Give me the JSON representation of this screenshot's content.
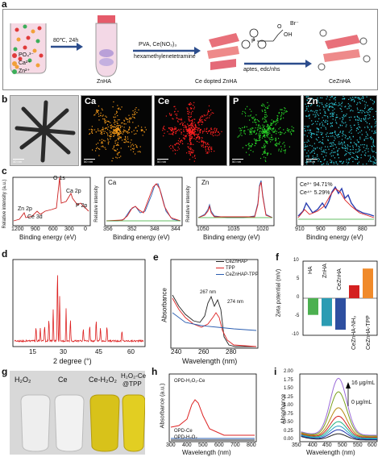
{
  "panel_a": {
    "letter": "a",
    "legend": [
      {
        "label": "PO₄³⁻",
        "color": "#e03a3a"
      },
      {
        "label": "Ca²⁺",
        "color": "#f1a03a"
      },
      {
        "label": "Zn²⁺",
        "color": "#3cae5a"
      }
    ],
    "step1_text": "80℃, 24h",
    "znha_label": "ZnHA",
    "step2_top": "PVA, Ce(NO₃)₃",
    "step2_bottom": "hexamethylenetetramine",
    "ce_label": "Ce dopted ZnHA",
    "step3_text": "aptes, edc/nhs",
    "br_label": "Br⁻",
    "oh_label": "OH",
    "o_label": "O",
    "p_label": "P",
    "final_label": "CeZnHA"
  },
  "panel_b": {
    "letter": "b",
    "maps": [
      {
        "label": "",
        "scale": "40 nm",
        "color": "#d8d8d8"
      },
      {
        "label": "Ca",
        "scale": "50 nm",
        "color": "#f59a1a"
      },
      {
        "label": "Ce",
        "scale": "50 nm",
        "color": "#ff2020"
      },
      {
        "label": "P",
        "scale": "50 nm",
        "color": "#29d629"
      },
      {
        "label": "Zn",
        "scale": "50 nm",
        "color": "#2ec8d8"
      }
    ]
  },
  "panel_c": {
    "letter": "c",
    "survey": {
      "ylabel": "Relative intensity (a.u.)",
      "xlabel": "Binding energy (eV)",
      "xticks": [
        "1200",
        "900",
        "600",
        "300",
        "0"
      ],
      "peaks": [
        "O 1s",
        "Ca 2p",
        "P 2p",
        "Zn 2p",
        "Ce 3d"
      ]
    },
    "ca": {
      "title": "Ca",
      "ylabel": "Relative intensity",
      "xticks": [
        "356",
        "352",
        "348",
        "344"
      ]
    },
    "zn": {
      "title": "Zn",
      "ylabel": "Relative intensity",
      "xticks": [
        "1050",
        "1035",
        "1020"
      ]
    },
    "ce": {
      "ce3": "Ce³⁺ 94.71%",
      "ce4": "Ce⁴⁺ 5.29%",
      "xticks": [
        "910",
        "900",
        "890",
        "880"
      ]
    }
  },
  "panel_d": {
    "letter": "d",
    "xlabel": "2 degree (°)",
    "xticks": [
      "15",
      "30",
      "45",
      "60"
    ]
  },
  "panel_e": {
    "letter": "e",
    "ylabel": "Absorbance",
    "xlabel": "Wavelength (nm)",
    "xticks": [
      "240",
      "260",
      "280"
    ],
    "legend": [
      {
        "label": "CeZnHAP",
        "color": "#222222"
      },
      {
        "label": "TPP",
        "color": "#d42020"
      },
      {
        "label": "CeZnHAP-TPP",
        "color": "#2a5db0"
      }
    ],
    "annot1": "267 nm",
    "annot2": "274 nm"
  },
  "panel_f": {
    "letter": "f",
    "ylabel": "Zeta potential (mV)",
    "yticks": [
      "10",
      "5",
      "0",
      "-5",
      "-10"
    ],
    "chart_data": {
      "type": "bar",
      "categories": [
        "HA",
        "ZnHA",
        "CeZnHA",
        "CeZnHA-NH₃",
        "CeZnHA-TPP"
      ],
      "values": [
        -4.5,
        -7.5,
        -8.5,
        3.5,
        8.0
      ],
      "colors": [
        "#4cb050",
        "#2b9cb3",
        "#2e4fa0",
        "#d42020",
        "#f08a2a"
      ],
      "ylim": [
        -10,
        10
      ]
    }
  },
  "panel_g": {
    "letter": "g",
    "labels": [
      "H₂O₂",
      "Ce",
      "Ce-H₂O₂",
      "H₂O₂-Ce",
      "@TPP"
    ]
  },
  "panel_h": {
    "letter": "h",
    "ylabel": "Absorbance (a.u.)",
    "xlabel": "Wavelength (nm)",
    "xticks": [
      "300",
      "400",
      "500",
      "600",
      "700",
      "800"
    ],
    "labels": [
      "OPD-H₂O₂-Ce",
      "OPD-Ce",
      "OPD-H₂O₂"
    ]
  },
  "panel_i": {
    "letter": "i",
    "ylabel": "Absorbance",
    "xlabel": "Wavelength (nm)",
    "xticks": [
      "350",
      "400",
      "450",
      "500",
      "550",
      "600"
    ],
    "yticks": [
      "0.00",
      "0.25",
      "0.50",
      "0.75",
      "1.00",
      "1.25",
      "1.50",
      "1.75",
      "2.00"
    ],
    "top_label": "16 μg/mL",
    "bottom_label": "0 μg/mL",
    "chart_data": {
      "type": "line",
      "x_peak": 450,
      "peak_values": [
        0.18,
        0.28,
        0.37,
        0.48,
        0.62,
        0.85,
        1.3,
        1.68
      ],
      "colors": [
        "#222222",
        "#1a2fa8",
        "#2aa0c8",
        "#20b080",
        "#d22020",
        "#b58a10",
        "#7aa020",
        "#9a6ad8"
      ]
    }
  }
}
